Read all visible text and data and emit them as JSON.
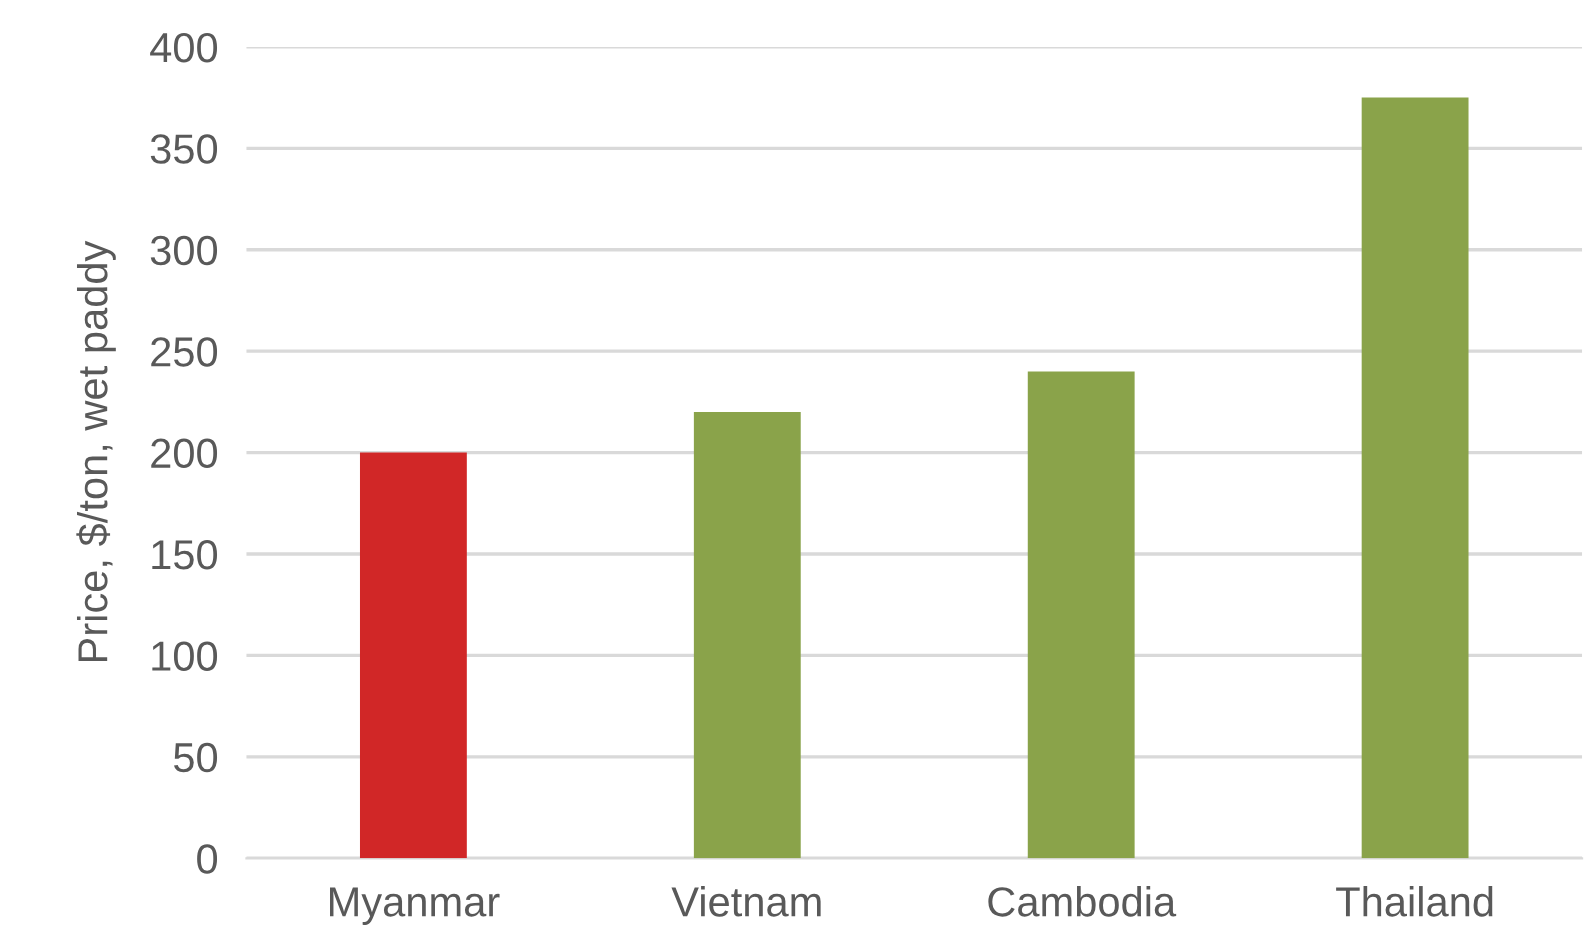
{
  "chart_data": {
    "type": "bar",
    "ylabel": "Price, $/ton, wet paddy",
    "categories": [
      "Myanmar",
      "Vietnam",
      "Cambodia",
      "Thailand"
    ],
    "values": [
      200,
      220,
      240,
      375
    ],
    "colors": [
      "#d12727",
      "#8aa34a",
      "#8aa34a",
      "#8aa34a"
    ],
    "ylim": [
      0,
      400
    ],
    "yticks": [
      0,
      50,
      100,
      150,
      200,
      250,
      300,
      350,
      400
    ],
    "grid": "y",
    "legend": false
  }
}
